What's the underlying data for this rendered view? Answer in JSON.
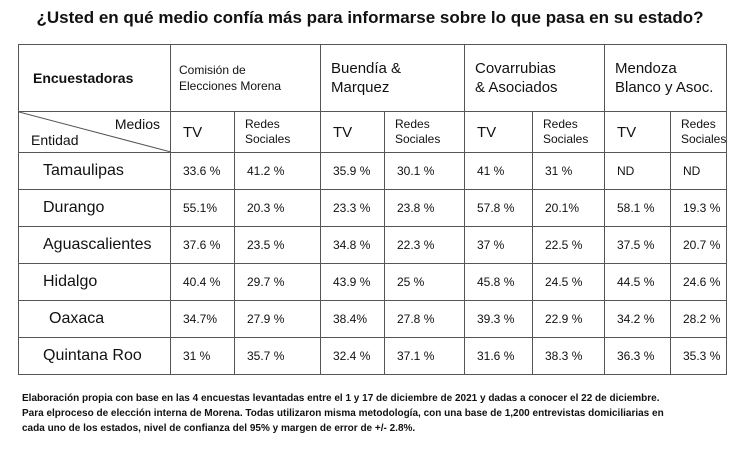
{
  "title": "¿Usted en qué medio confía más para informarse sobre lo que pasa en su estado?",
  "header": {
    "encuestadoras_label": "Encuestadoras",
    "pollsters": [
      [
        "Comisión de",
        "Elecciones Morena"
      ],
      [
        "Buendía &",
        "Marquez"
      ],
      [
        "Covarrubias",
        "& Asociados"
      ],
      [
        "Mendoza",
        "Blanco y Asoc."
      ]
    ],
    "medios_label": "Medios",
    "entidad_label": "Entidad",
    "tv_label": "TV",
    "redes_label": [
      "Redes",
      "Sociales"
    ]
  },
  "rows": [
    {
      "entidad": "Tamaulipas",
      "values": [
        "33.6 %",
        "41.2 %",
        "35.9 %",
        "30.1 %",
        "41 %",
        "31 %",
        "ND",
        "ND"
      ]
    },
    {
      "entidad": "Durango",
      "values": [
        "55.1%",
        "20.3 %",
        "23.3 %",
        "23.8 %",
        "57.8 %",
        "20.1%",
        "58.1 %",
        "19.3 %"
      ]
    },
    {
      "entidad": "Aguascalientes",
      "values": [
        "37.6 %",
        "23.5 %",
        "34.8 %",
        "22.3 %",
        "37 %",
        "22.5 %",
        "37.5 %",
        "20.7 %"
      ]
    },
    {
      "entidad": "Hidalgo",
      "values": [
        "40.4 %",
        "29.7 %",
        "43.9 %",
        "25 %",
        "45.8 %",
        "24.5 %",
        "44.5 %",
        "24.6 %"
      ]
    },
    {
      "entidad": "Oaxaca",
      "values": [
        "34.7%",
        "27.9 %",
        "38.4%",
        "27.8 %",
        "39.3 %",
        "22.9 %",
        "34.2 %",
        "28.2 %"
      ]
    },
    {
      "entidad": "Quintana Roo",
      "values": [
        "31 %",
        "35.7 %",
        "32.4 %",
        "37.1 %",
        "31.6 %",
        "38.3 %",
        "36.3 %",
        "35.3 %"
      ]
    }
  ],
  "notes": [
    "Elaboración propia con base en las 4 encuestas levantadas  entre el 1 y 17 de diciembre de 2021 y dadas a conocer el 22 de diciembre.",
    "Para elproceso de elección interna de Morena. Todas utilizaron misma metodología, con una base de 1,200 entrevistas domiciliarias en",
    "cada uno de los estados, nivel de confianza del 95% y margen de error de +/- 2.8%."
  ]
}
